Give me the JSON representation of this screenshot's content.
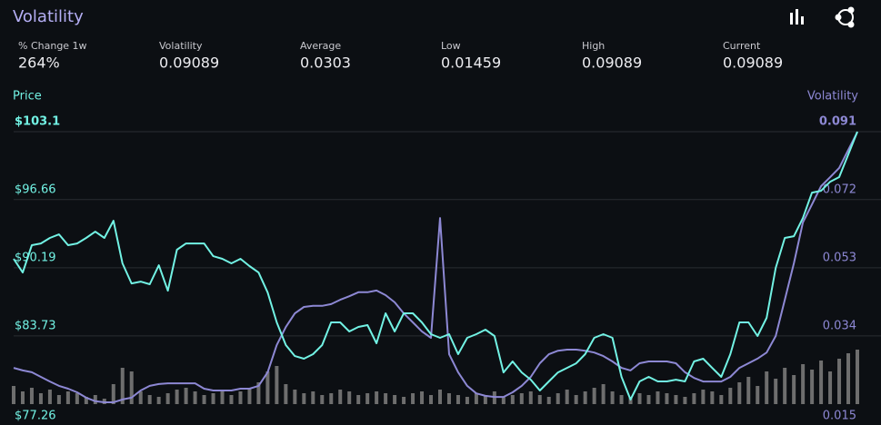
{
  "header": {
    "title": "Volatility"
  },
  "stats": [
    {
      "label": "% Change 1w",
      "value": "264%"
    },
    {
      "label": "Volatility",
      "value": "0.09089"
    },
    {
      "label": "Average",
      "value": "0.0303"
    },
    {
      "label": "Low",
      "value": "0.01459"
    },
    {
      "label": "High",
      "value": "0.09089"
    },
    {
      "label": "Current",
      "value": "0.09089"
    }
  ],
  "chart_data": {
    "type": "line",
    "grid": true,
    "ylim": [
      77.26,
      103.1
    ],
    "yticks": [
      {
        "value": 77.26,
        "label": "$77.26"
      },
      {
        "value": 83.73,
        "label": "$83.73"
      },
      {
        "value": 90.19,
        "label": "$90.19"
      },
      {
        "value": 96.66,
        "label": "$96.66"
      },
      {
        "value": 103.1,
        "label": "$103.1"
      }
    ],
    "y2lim": [
      0.015,
      0.091
    ],
    "y2ticks": [
      0.015,
      0.034,
      0.053,
      0.072,
      0.091
    ],
    "series": [
      {
        "name": "Price",
        "color": "#72f2e4",
        "values": [
          91.04,
          89.74,
          92.33,
          92.5,
          93.02,
          93.36,
          92.33,
          92.5,
          93.02,
          93.62,
          93.02,
          94.65,
          90.61,
          88.71,
          88.88,
          88.63,
          90.43,
          88.02,
          91.9,
          92.5,
          92.5,
          92.5,
          91.29,
          91.04,
          90.61,
          91.04,
          90.35,
          89.74,
          87.85,
          85.01,
          82.86,
          81.82,
          81.57,
          82.0,
          82.86,
          85.01,
          85.01,
          84.15,
          84.58,
          84.75,
          83.03,
          85.87,
          84.15,
          85.87,
          85.87,
          85.01,
          83.89,
          83.55,
          83.89,
          82.0,
          83.55,
          83.89,
          84.32,
          83.72,
          80.27,
          81.31,
          80.27,
          79.58,
          78.55,
          79.41,
          80.27,
          80.7,
          81.13,
          82.0,
          83.55,
          83.89,
          83.55,
          79.84,
          77.69,
          79.41,
          79.84,
          79.41,
          79.41,
          79.58,
          79.41,
          81.31,
          81.57,
          80.7,
          79.84,
          82.0,
          85.01,
          85.01,
          83.72,
          85.44,
          90.18,
          93.02,
          93.19,
          94.91,
          97.32,
          97.49,
          98.35,
          98.79,
          100.94,
          103.1
        ]
      },
      {
        "name": "Volatility",
        "color": "#8d88d4",
        "axis": "y2",
        "values": [
          0.0251,
          0.0244,
          0.0239,
          0.0226,
          0.0213,
          0.0201,
          0.0193,
          0.0183,
          0.0168,
          0.0158,
          0.0155,
          0.0155,
          0.0163,
          0.0168,
          0.0188,
          0.0201,
          0.0206,
          0.0208,
          0.0208,
          0.0208,
          0.0208,
          0.0193,
          0.0188,
          0.0188,
          0.0188,
          0.0193,
          0.0193,
          0.0201,
          0.0239,
          0.0315,
          0.0365,
          0.0403,
          0.0421,
          0.0424,
          0.0424,
          0.0429,
          0.0441,
          0.0451,
          0.0462,
          0.0462,
          0.0467,
          0.0454,
          0.0434,
          0.0403,
          0.0378,
          0.0353,
          0.0335,
          0.0669,
          0.0289,
          0.0239,
          0.0201,
          0.018,
          0.0173,
          0.017,
          0.017,
          0.0183,
          0.0201,
          0.0226,
          0.0264,
          0.0289,
          0.0299,
          0.0302,
          0.0302,
          0.0299,
          0.0294,
          0.0284,
          0.0269,
          0.0251,
          0.0244,
          0.0264,
          0.0269,
          0.0269,
          0.0269,
          0.0264,
          0.0239,
          0.0223,
          0.0213,
          0.0213,
          0.0213,
          0.0226,
          0.0251,
          0.0264,
          0.0277,
          0.0294,
          0.034,
          0.0441,
          0.0543,
          0.0657,
          0.0707,
          0.0758,
          0.0783,
          0.0809,
          0.0859,
          0.0909
        ]
      }
    ],
    "volume": {
      "color": "#6e6e6e",
      "ylim": [
        0,
        100
      ],
      "values": [
        20,
        14,
        18,
        12,
        16,
        10,
        14,
        12,
        8,
        10,
        6,
        22,
        40,
        36,
        14,
        10,
        8,
        12,
        16,
        18,
        14,
        10,
        12,
        16,
        10,
        14,
        18,
        24,
        36,
        42,
        22,
        16,
        12,
        14,
        10,
        12,
        16,
        14,
        10,
        12,
        14,
        12,
        10,
        8,
        12,
        14,
        10,
        16,
        12,
        10,
        8,
        12,
        10,
        14,
        8,
        10,
        12,
        14,
        10,
        8,
        12,
        16,
        10,
        14,
        18,
        22,
        14,
        10,
        8,
        12,
        10,
        14,
        12,
        10,
        8,
        12,
        16,
        14,
        10,
        18,
        24,
        30,
        20,
        36,
        28,
        40,
        32,
        44,
        38,
        48,
        36,
        50,
        56,
        60
      ]
    }
  }
}
